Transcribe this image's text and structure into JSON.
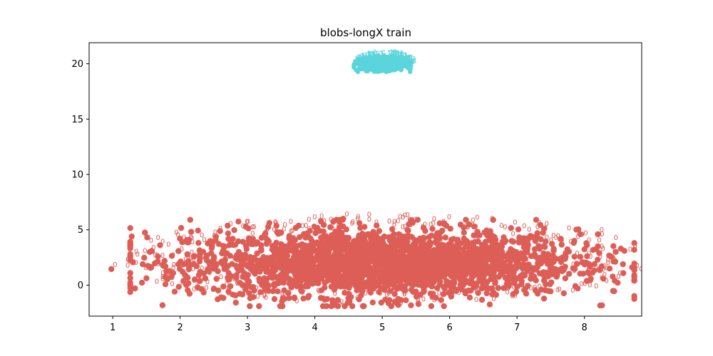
{
  "chart_data": {
    "type": "scatter",
    "title": "blobs-longX train",
    "xlabel": "",
    "ylabel": "",
    "xlim": [
      0.65,
      8.85
    ],
    "ylim": [
      -2.8,
      21.9
    ],
    "x_ticks": [
      1,
      2,
      3,
      4,
      5,
      6,
      7,
      8
    ],
    "y_ticks": [
      0,
      5,
      10,
      15,
      20
    ],
    "grid": false,
    "legend": "none",
    "series": [
      {
        "point_label": "0",
        "color": "#dd5e57",
        "center": [
          5.0,
          2.0
        ],
        "x_range": [
          0.98,
          8.46
        ],
        "y_range": [
          -1.8,
          6.0
        ],
        "approx_points": 10000,
        "outliers": [
          [
            0.98,
            1.45
          ],
          [
            1.55,
            3.0
          ],
          [
            1.57,
            1.6
          ],
          [
            1.78,
            0.75
          ],
          [
            1.98,
            -0.15
          ],
          [
            4.3,
            -1.8
          ],
          [
            4.42,
            6.0
          ],
          [
            8.2,
            4.6
          ],
          [
            8.22,
            2.9
          ],
          [
            8.45,
            0.4
          ],
          [
            2.05,
            0.4
          ],
          [
            2.12,
            3.85
          ],
          [
            7.85,
            4.0
          ],
          [
            7.9,
            -0.3
          ],
          [
            8.15,
            1.9
          ]
        ]
      },
      {
        "point_label": "1",
        "color": "#5bd5dc",
        "center": [
          5.0,
          20.0
        ],
        "x_range": [
          4.62,
          5.46
        ],
        "y_range": [
          19.5,
          20.95
        ],
        "approx_points": 10000,
        "outliers": []
      }
    ]
  }
}
